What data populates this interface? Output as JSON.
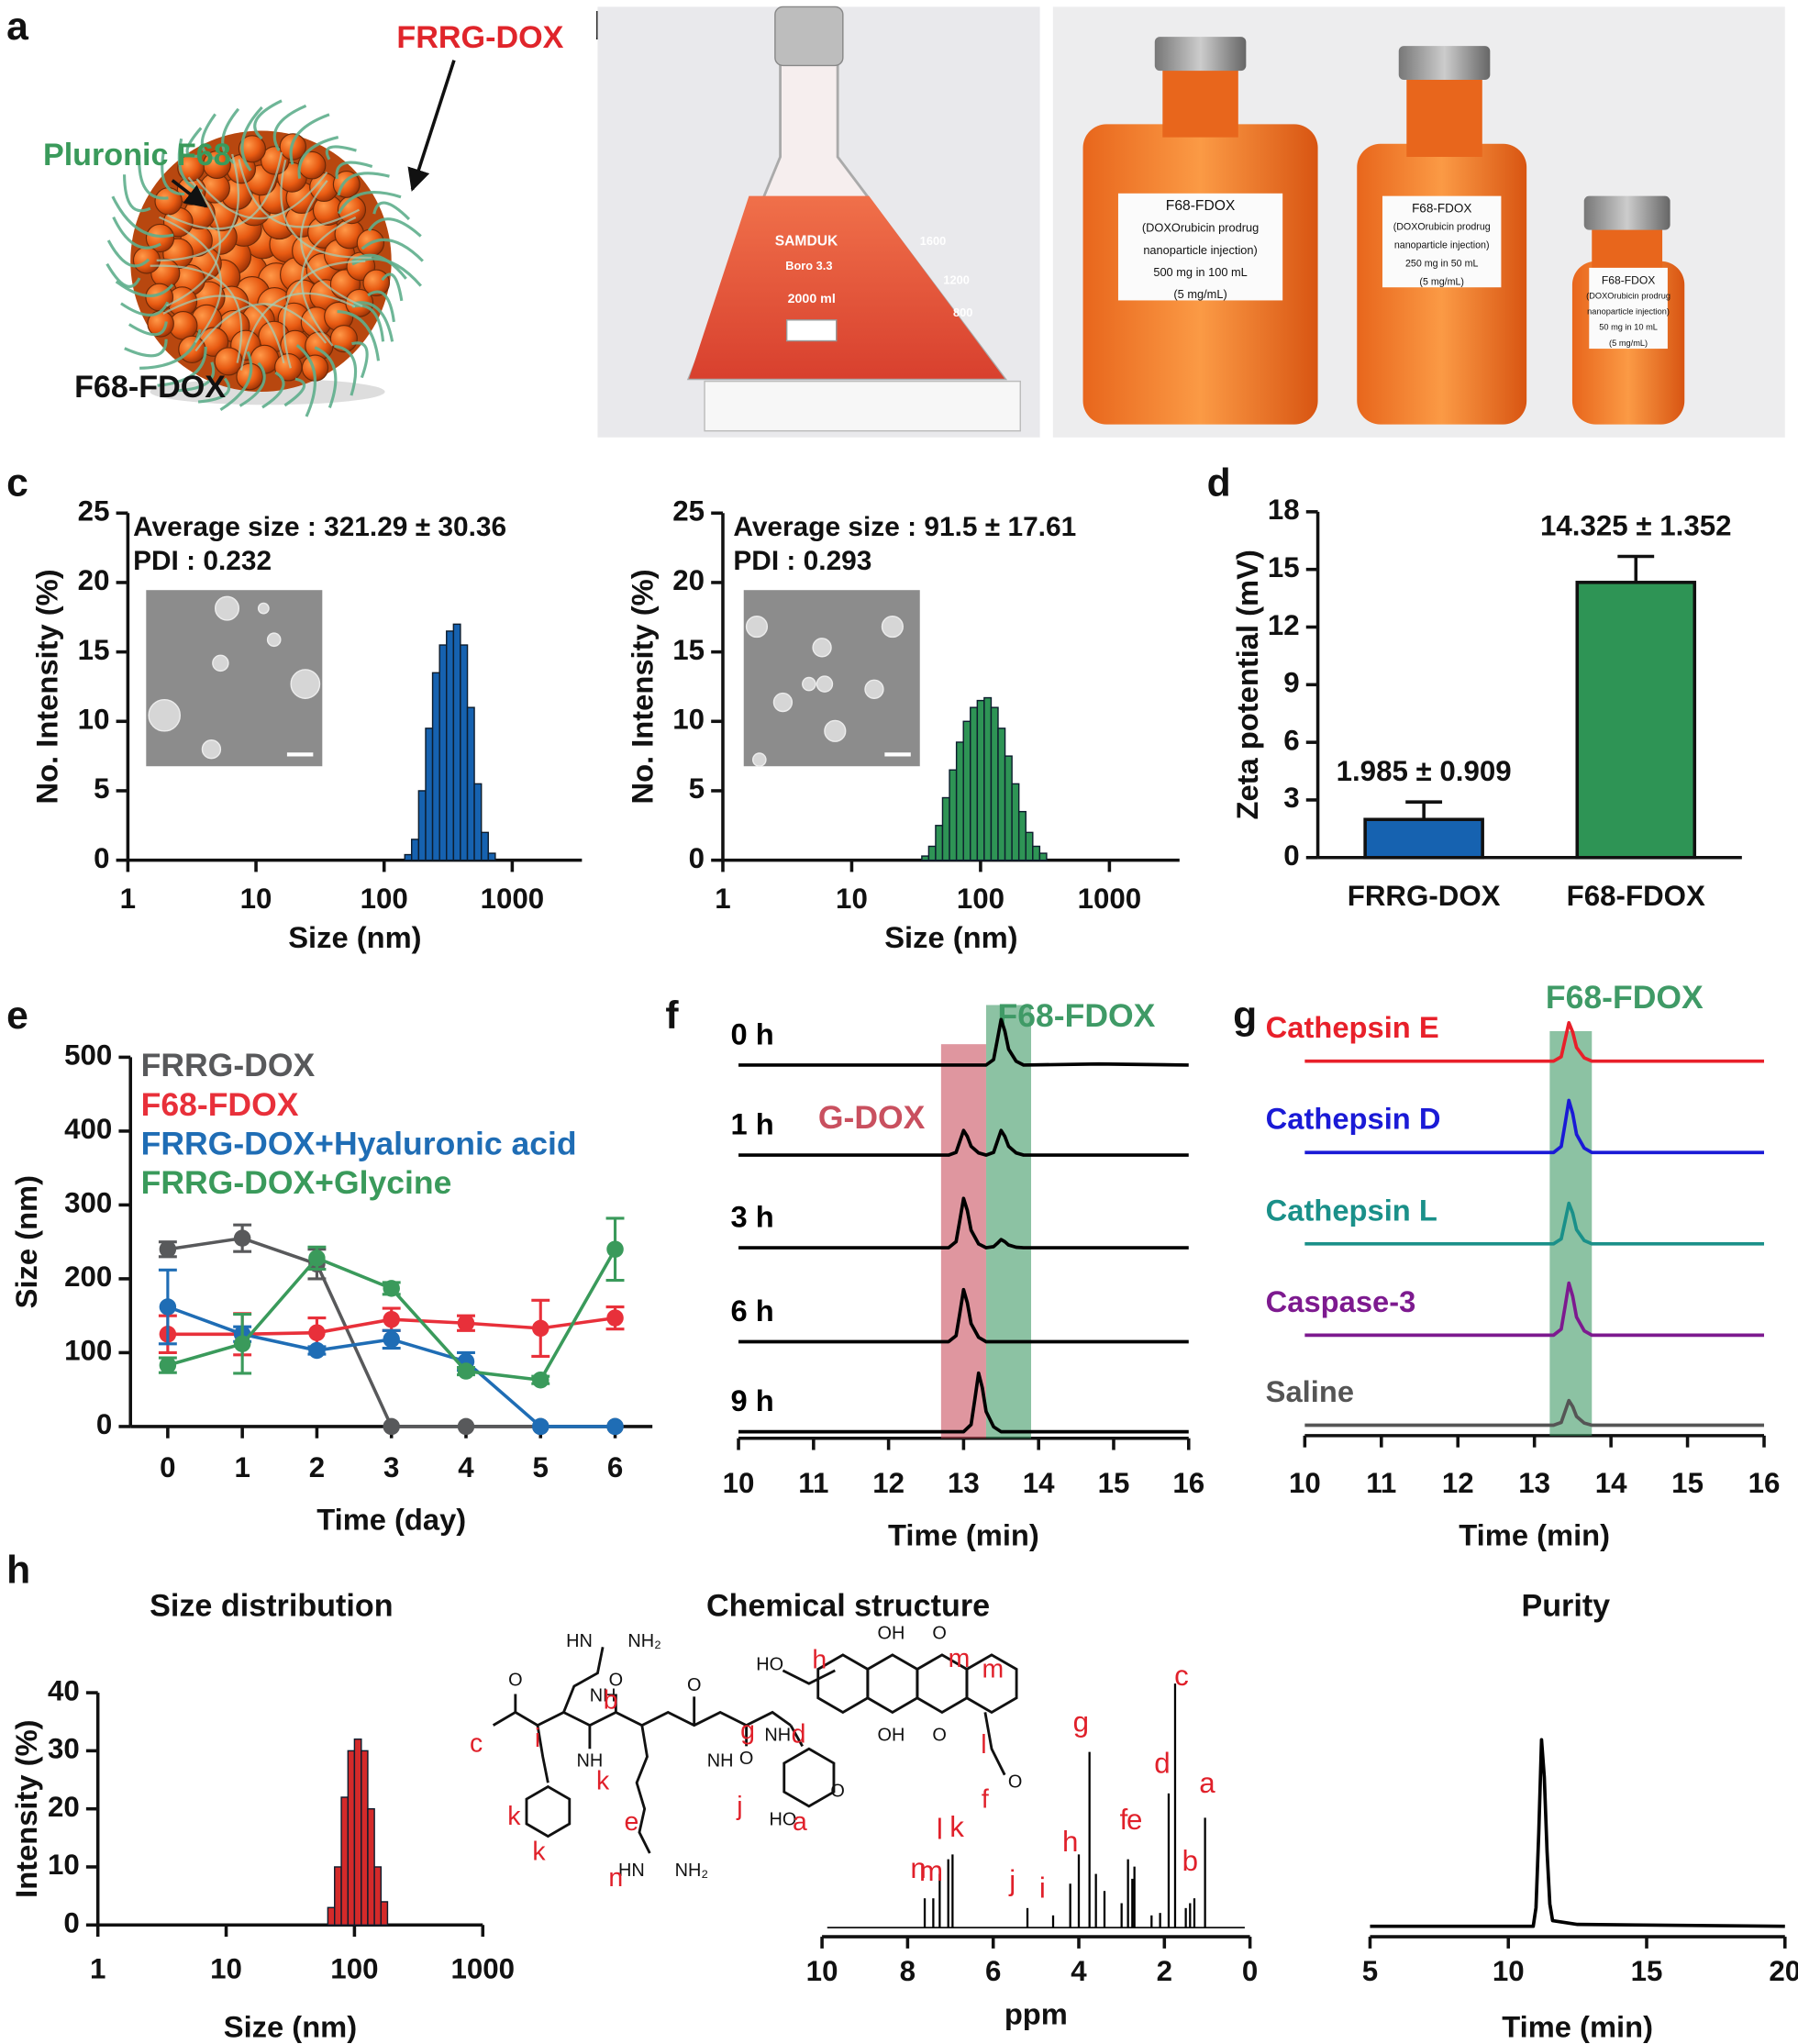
{
  "panel_labels": [
    "a",
    "b",
    "c",
    "d",
    "e",
    "f",
    "g",
    "h"
  ],
  "panel_a": {
    "labels": [
      "FRRG-DOX",
      "Pluronic F68",
      "F68-FDOX"
    ]
  },
  "panel_b": {
    "flask": [
      "SAMDUK",
      "Boro 3.3",
      "2000 ml",
      "1600",
      "1200",
      "800"
    ],
    "bottles": [
      [
        "F68-FDOX",
        "(DOXOrubicin prodrug",
        "nanoparticle injection)",
        "500 mg in 100 mL",
        "(5 mg/mL)"
      ],
      [
        "F68-FDOX",
        "(DOXOrubicin prodrug",
        "nanoparticle injection)",
        "250 mg in 50 mL",
        "(5 mg/mL)"
      ],
      [
        "F68-FDOX",
        "(DOXOrubicin prodrug",
        "nanoparticle injection)",
        "50 mg in 10 mL",
        "(5 mg/mL)"
      ]
    ]
  },
  "panel_h": {
    "titles": [
      "Size distribution",
      "Chemical structure",
      "Purity"
    ],
    "atoms": [
      "HN",
      "NH₂",
      "NH",
      "O",
      "O",
      "NH",
      "O",
      "NH",
      "O",
      "HO",
      "OH",
      "O",
      "OH",
      "O",
      "O",
      "HO",
      "HN",
      "NH₂",
      "NH",
      "O"
    ],
    "letters": [
      "c",
      "i",
      "b",
      "k",
      "k",
      "k",
      "e",
      "n",
      "g",
      "j",
      "d",
      "a",
      "h",
      "m",
      "m",
      "l",
      "f"
    ]
  },
  "chart_data": [
    {
      "type": "histogram",
      "xlabel": "Size (nm)",
      "ylabel": "No. Intensity (%)",
      "annotations": [
        "Average size : 321.29 ± 30.36",
        "PDI : 0.232"
      ],
      "bins": [
        145,
        164,
        186,
        211,
        239,
        271,
        307,
        348,
        394,
        447,
        506,
        574,
        650,
        737
      ],
      "values": [
        0.4,
        1.5,
        5,
        9.5,
        13.5,
        15.5,
        16.5,
        17,
        15.5,
        11,
        5.5,
        2,
        0.5
      ],
      "color": "#1662b0",
      "xscale": "log",
      "xlim": [
        1,
        3500
      ],
      "xticks": [
        1,
        10,
        100,
        1000
      ],
      "ylim": [
        0,
        25
      ],
      "yticks": [
        0,
        5,
        10,
        15,
        20,
        25
      ]
    },
    {
      "type": "histogram",
      "xlabel": "Size (nm)",
      "ylabel": "No. Intensity (%)",
      "annotations": [
        "Average size : 91.5 ± 17.61",
        "PDI : 0.293"
      ],
      "bins": [
        35,
        39.6,
        44.8,
        50.7,
        57.4,
        65,
        73.6,
        83.3,
        94.3,
        106.7,
        120.8,
        136.7,
        154.8,
        175.2,
        198.3,
        224.5,
        254.1,
        287.6,
        325.5
      ],
      "values": [
        0.3,
        1,
        2.5,
        4.5,
        6.5,
        8.5,
        10,
        11,
        11.5,
        11.7,
        11,
        9.5,
        7.5,
        5.5,
        3.5,
        2,
        1,
        0.5
      ],
      "color": "#2e9455",
      "xscale": "log",
      "xlim": [
        1,
        3500
      ],
      "xticks": [
        1,
        10,
        100,
        1000
      ],
      "ylim": [
        0,
        25
      ],
      "yticks": [
        0,
        5,
        10,
        15,
        20,
        25
      ]
    },
    {
      "type": "bar",
      "ylabel": "Zeta potential (mV)",
      "categories": [
        "FRRG-DOX",
        "F68-FDOX"
      ],
      "values": [
        1.985,
        14.325
      ],
      "errors": [
        0.909,
        1.352
      ],
      "value_labels": [
        "1.985 ± 0.909",
        "14.325 ± 1.352"
      ],
      "colors": [
        "#1662b0",
        "#2e9455"
      ],
      "ylim": [
        0,
        18
      ],
      "yticks": [
        0,
        3,
        6,
        9,
        12,
        15,
        18
      ]
    },
    {
      "type": "line",
      "xlabel": "Time (day)",
      "ylabel": "Size (nm)",
      "x": [
        0,
        1,
        2,
        3,
        4,
        5,
        6
      ],
      "xlim": [
        -0.5,
        6.5
      ],
      "xticks": [
        0,
        1,
        2,
        3,
        4,
        5,
        6
      ],
      "ylim": [
        0,
        500
      ],
      "yticks": [
        0,
        100,
        200,
        300,
        400,
        500
      ],
      "series": [
        {
          "name": "FRRG-DOX",
          "color": "#58595b",
          "values": [
            240,
            255,
            220,
            0,
            0,
            0,
            0
          ],
          "errors": [
            10,
            18,
            20,
            0,
            0,
            0,
            0
          ]
        },
        {
          "name": "F68-FDOX",
          "color": "#e8303a",
          "values": [
            125,
            125,
            127,
            145,
            140,
            133,
            147
          ],
          "errors": [
            25,
            28,
            20,
            15,
            10,
            38,
            15
          ]
        },
        {
          "name": "FRRG-DOX+Hyaluronic acid",
          "color": "#1f6db5",
          "values": [
            162,
            125,
            103,
            118,
            88,
            0,
            0
          ],
          "errors": [
            50,
            10,
            5,
            12,
            12,
            0,
            0
          ]
        },
        {
          "name": "FRRG-DOX+Glycine",
          "color": "#3a9a5b",
          "values": [
            83,
            112,
            228,
            187,
            75,
            63,
            240
          ],
          "errors": [
            10,
            40,
            15,
            8,
            5,
            5,
            42
          ]
        }
      ]
    },
    {
      "type": "chromatogram",
      "xlabel": "Time (min)",
      "xlim": [
        10,
        16
      ],
      "xticks": [
        10,
        11,
        12,
        13,
        14,
        15,
        16
      ],
      "bands": [
        {
          "label": "G-DOX",
          "x0": 12.7,
          "x1": 13.3,
          "color": "#c9505f"
        },
        {
          "label": "F68-FDOX",
          "x0": 13.3,
          "x1": 13.9,
          "color": "#3f9a66"
        }
      ],
      "series": [
        {
          "name": "0 h",
          "color": "#000000",
          "x": [
            10,
            13.3,
            13.4,
            13.45,
            13.5,
            13.55,
            13.6,
            13.7,
            13.8,
            14.8,
            16
          ],
          "values": [
            0,
            0,
            0.1,
            0.46,
            0.83,
            0.62,
            0.29,
            0.07,
            0,
            0.02,
            0
          ]
        },
        {
          "name": "1 h",
          "color": "#000000",
          "x": [
            10,
            12.8,
            12.9,
            12.95,
            13.0,
            13.05,
            13.1,
            13.2,
            13.3,
            13.4,
            13.45,
            13.5,
            13.55,
            13.6,
            13.7,
            13.8,
            16
          ],
          "values": [
            0,
            0,
            0.05,
            0.25,
            0.45,
            0.34,
            0.16,
            0.04,
            0,
            0.05,
            0.25,
            0.45,
            0.34,
            0.16,
            0.04,
            0,
            0
          ]
        },
        {
          "name": "3 h",
          "color": "#000000",
          "x": [
            10,
            12.8,
            12.9,
            12.95,
            13.0,
            13.05,
            13.1,
            13.2,
            13.3,
            13.4,
            13.45,
            13.5,
            13.55,
            13.6,
            13.7,
            13.8,
            16
          ],
          "values": [
            0,
            0,
            0.11,
            0.5,
            0.9,
            0.68,
            0.32,
            0.07,
            0,
            0.02,
            0.08,
            0.15,
            0.11,
            0.05,
            0.01,
            0,
            0
          ]
        },
        {
          "name": "6 h",
          "color": "#000000",
          "x": [
            10,
            12.8,
            12.9,
            12.95,
            13.0,
            13.05,
            13.1,
            13.2,
            13.3,
            16
          ],
          "values": [
            0,
            0,
            0.11,
            0.52,
            0.95,
            0.71,
            0.33,
            0.08,
            0,
            0
          ]
        },
        {
          "name": "9 h",
          "color": "#000000",
          "x": [
            10,
            13.0,
            13.1,
            13.15,
            13.2,
            13.25,
            13.3,
            13.4,
            13.5,
            16
          ],
          "values": [
            0,
            0,
            0.13,
            0.59,
            1.07,
            0.8,
            0.37,
            0.09,
            0,
            0
          ]
        }
      ]
    },
    {
      "type": "chromatogram",
      "xlabel": "Time (min)",
      "xlim": [
        10,
        16
      ],
      "xticks": [
        10,
        11,
        12,
        13,
        14,
        15,
        16
      ],
      "bands": [
        {
          "label": "F68-FDOX",
          "x0": 13.2,
          "x1": 13.75,
          "color": "#3f9a66"
        }
      ],
      "series": [
        {
          "name": "Cathepsin E",
          "color": "#e8202a",
          "x": [
            10,
            13.25,
            13.35,
            13.4,
            13.45,
            13.5,
            13.55,
            13.65,
            13.75,
            16
          ],
          "values": [
            0,
            0,
            0.08,
            0.39,
            0.7,
            0.53,
            0.25,
            0.06,
            0,
            0
          ]
        },
        {
          "name": "Cathepsin D",
          "color": "#1a1ad6",
          "x": [
            10,
            13.25,
            13.35,
            13.4,
            13.45,
            13.5,
            13.55,
            13.65,
            13.75,
            16
          ],
          "values": [
            0,
            0,
            0.11,
            0.52,
            0.95,
            0.71,
            0.33,
            0.08,
            0,
            0
          ]
        },
        {
          "name": "Cathepsin L",
          "color": "#1a9089",
          "x": [
            10,
            13.25,
            13.35,
            13.4,
            13.45,
            13.5,
            13.55,
            13.65,
            13.75,
            16
          ],
          "values": [
            0,
            0,
            0.09,
            0.41,
            0.74,
            0.56,
            0.26,
            0.06,
            0,
            0
          ]
        },
        {
          "name": "Caspase-3",
          "color": "#7d1a8f",
          "x": [
            10,
            13.25,
            13.35,
            13.4,
            13.45,
            13.5,
            13.55,
            13.65,
            13.75,
            16
          ],
          "values": [
            0,
            0,
            0.11,
            0.52,
            0.95,
            0.71,
            0.33,
            0.08,
            0,
            0
          ]
        },
        {
          "name": "Saline",
          "color": "#555555",
          "x": [
            10,
            13.25,
            13.35,
            13.4,
            13.45,
            13.5,
            13.55,
            13.65,
            13.75,
            16
          ],
          "values": [
            0,
            0,
            0.05,
            0.25,
            0.45,
            0.34,
            0.16,
            0.04,
            0,
            0
          ]
        }
      ]
    },
    {
      "type": "histogram",
      "xlabel": "Size (nm)",
      "ylabel": "Intensity (%)",
      "bins": [
        62,
        70,
        79,
        89,
        100,
        113,
        127,
        143,
        161,
        181
      ],
      "values": [
        3,
        10,
        22,
        30,
        32,
        30,
        20,
        10,
        4
      ],
      "color": "#d42a2a",
      "xscale": "log",
      "xlim": [
        1,
        1000
      ],
      "xticks": [
        1,
        10,
        100,
        1000
      ],
      "ylim": [
        0,
        40
      ],
      "yticks": [
        0,
        10,
        20,
        30,
        40
      ]
    },
    {
      "type": "stem",
      "xlabel": "ppm",
      "xlim": [
        10,
        0
      ],
      "xticks": [
        10,
        8,
        6,
        4,
        2,
        0
      ],
      "x": [
        7.6,
        7.4,
        7.25,
        7.05,
        6.95,
        5.2,
        4.6,
        4.2,
        4.0,
        3.75,
        3.6,
        3.4,
        3.0,
        2.85,
        2.75,
        2.7,
        2.3,
        2.1,
        1.9,
        1.75,
        1.5,
        1.4,
        1.3,
        1.05
      ],
      "values": [
        0.12,
        0.12,
        0.22,
        0.28,
        0.3,
        0.08,
        0.05,
        0.18,
        0.3,
        0.72,
        0.22,
        0.15,
        0.1,
        0.28,
        0.2,
        0.25,
        0.05,
        0.06,
        0.55,
        1.0,
        0.08,
        0.1,
        0.12,
        0.45
      ],
      "color": "#000000",
      "annotations": [
        {
          "text": "n",
          "x": 7.75,
          "y": 0.17
        },
        {
          "text": "m",
          "x": 7.45,
          "y": 0.16
        },
        {
          "text": "l",
          "x": 7.25,
          "y": 0.33
        },
        {
          "text": "k",
          "x": 6.85,
          "y": 0.34
        },
        {
          "text": "j",
          "x": 5.55,
          "y": 0.12
        },
        {
          "text": "i",
          "x": 4.85,
          "y": 0.09
        },
        {
          "text": "h",
          "x": 4.2,
          "y": 0.28
        },
        {
          "text": "g",
          "x": 3.95,
          "y": 0.77
        },
        {
          "text": "f",
          "x": 2.95,
          "y": 0.37
        },
        {
          "text": "e",
          "x": 2.7,
          "y": 0.37
        },
        {
          "text": "d",
          "x": 2.05,
          "y": 0.6
        },
        {
          "text": "c",
          "x": 1.6,
          "y": 0.96
        },
        {
          "text": "b",
          "x": 1.4,
          "y": 0.2
        },
        {
          "text": "a",
          "x": 1.0,
          "y": 0.52
        }
      ]
    },
    {
      "type": "chromatogram",
      "xlabel": "Time (min)",
      "xlim": [
        5,
        20
      ],
      "xticks": [
        5,
        10,
        15,
        20
      ],
      "series": [
        {
          "color": "#000000",
          "x": [
            5,
            10.9,
            11.0,
            11.1,
            11.2,
            11.3,
            11.4,
            11.5,
            11.6,
            12.5,
            20
          ],
          "values": [
            0,
            0,
            0.1,
            0.5,
            1,
            0.8,
            0.4,
            0.12,
            0.03,
            0.01,
            0
          ]
        }
      ]
    }
  ]
}
